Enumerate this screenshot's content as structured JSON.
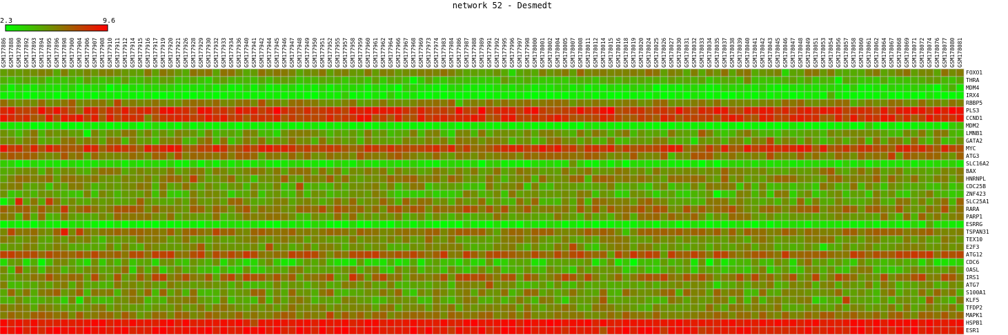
{
  "chart_data": {
    "type": "heatmap",
    "title": "network 52 - Desmedt",
    "color_scale": {
      "min": 2.3,
      "max": 9.6,
      "min_label": "2.3",
      "max_label": "9.6",
      "low_color": "#00ff00",
      "mid_color": "#808000",
      "high_color": "#ff0000",
      "grid_line_color": "#c0c0c0"
    },
    "columns": [
      "GSM177886",
      "GSM177888",
      "GSM177890",
      "GSM177892",
      "GSM177893",
      "GSM177894",
      "GSM177895",
      "GSM177896",
      "GSM177898",
      "GSM177900",
      "GSM177904",
      "GSM177906",
      "GSM177907",
      "GSM177908",
      "GSM177910",
      "GSM177911",
      "GSM177912",
      "GSM177914",
      "GSM177915",
      "GSM177916",
      "GSM177917",
      "GSM177919",
      "GSM177920",
      "GSM177921",
      "GSM177926",
      "GSM177928",
      "GSM177929",
      "GSM177930",
      "GSM177932",
      "GSM177933",
      "GSM177934",
      "GSM177936",
      "GSM177940",
      "GSM177941",
      "GSM177942",
      "GSM177944",
      "GSM177945",
      "GSM177946",
      "GSM177947",
      "GSM177948",
      "GSM177949",
      "GSM177950",
      "GSM177951",
      "GSM177952",
      "GSM177955",
      "GSM177957",
      "GSM177958",
      "GSM177959",
      "GSM177960",
      "GSM177961",
      "GSM177962",
      "GSM177964",
      "GSM177966",
      "GSM177967",
      "GSM177968",
      "GSM177969",
      "GSM177973",
      "GSM177974",
      "GSM177983",
      "GSM177984",
      "GSM177986",
      "GSM177987",
      "GSM177988",
      "GSM177989",
      "GSM177991",
      "GSM177992",
      "GSM177995",
      "GSM177996",
      "GSM177997",
      "GSM177998",
      "GSM178000",
      "GSM178001",
      "GSM178002",
      "GSM178004",
      "GSM178005",
      "GSM178007",
      "GSM178008",
      "GSM178011",
      "GSM178012",
      "GSM178014",
      "GSM178015",
      "GSM178016",
      "GSM178018",
      "GSM178019",
      "GSM178020",
      "GSM178024",
      "GSM178025",
      "GSM178026",
      "GSM178027",
      "GSM178030",
      "GSM178031",
      "GSM178032",
      "GSM178033",
      "GSM178034",
      "GSM178035",
      "GSM178037",
      "GSM178038",
      "GSM178039",
      "GSM178040",
      "GSM178041",
      "GSM178042",
      "GSM178043",
      "GSM178045",
      "GSM178046",
      "GSM178047",
      "GSM178048",
      "GSM178049",
      "GSM178051",
      "GSM178053",
      "GSM178054",
      "GSM178056",
      "GSM178057",
      "GSM178058",
      "GSM178060",
      "GSM178061",
      "GSM178062",
      "GSM178064",
      "GSM178067",
      "GSM178068",
      "GSM178069",
      "GSM178071",
      "GSM178072",
      "GSM178074",
      "GSM178076",
      "GSM178077",
      "GSM178080",
      "GSM178081"
    ],
    "rows": [
      {
        "name": "FOXO1",
        "level": 0.45,
        "spread": 0.12,
        "seed": 3
      },
      {
        "name": "THRA",
        "level": 0.3,
        "spread": 0.1,
        "seed": 7
      },
      {
        "name": "MDM4",
        "level": 0.12,
        "spread": 0.08,
        "seed": 11
      },
      {
        "name": "IRX4",
        "level": 0.05,
        "spread": 0.05,
        "seed": 13
      },
      {
        "name": "RBBP5",
        "level": 0.5,
        "spread": 0.1,
        "seed": 17
      },
      {
        "name": "PLS3",
        "level": 0.82,
        "spread": 0.14,
        "seed": 19
      },
      {
        "name": "CCND1",
        "level": 0.78,
        "spread": 0.16,
        "seed": 23
      },
      {
        "name": "MDM2",
        "level": 0.05,
        "spread": 0.05,
        "seed": 29
      },
      {
        "name": "LMNB1",
        "level": 0.4,
        "spread": 0.15,
        "seed": 31
      },
      {
        "name": "GATA2",
        "level": 0.42,
        "spread": 0.18,
        "seed": 37
      },
      {
        "name": "MYC",
        "level": 0.75,
        "spread": 0.18,
        "seed": 41
      },
      {
        "name": "ATG3",
        "level": 0.55,
        "spread": 0.12,
        "seed": 43
      },
      {
        "name": "SLC16A2",
        "level": 0.12,
        "spread": 0.08,
        "seed": 47
      },
      {
        "name": "BAX",
        "level": 0.45,
        "spread": 0.12,
        "seed": 53
      },
      {
        "name": "HNRNPL",
        "level": 0.5,
        "spread": 0.14,
        "seed": 59
      },
      {
        "name": "CDC25B",
        "level": 0.38,
        "spread": 0.18,
        "seed": 61
      },
      {
        "name": "ZNF423",
        "level": 0.35,
        "spread": 0.18,
        "seed": 67
      },
      {
        "name": "SLC25A1",
        "level": 0.45,
        "spread": 0.18,
        "seed": 71
      },
      {
        "name": "RARA",
        "level": 0.55,
        "spread": 0.15,
        "seed": 73
      },
      {
        "name": "PARP1",
        "level": 0.45,
        "spread": 0.18,
        "seed": 79
      },
      {
        "name": "ESRRG",
        "level": 0.08,
        "spread": 0.08,
        "seed": 83
      },
      {
        "name": "TSPAN31",
        "level": 0.55,
        "spread": 0.1,
        "seed": 89
      },
      {
        "name": "TEX10",
        "level": 0.45,
        "spread": 0.12,
        "seed": 97
      },
      {
        "name": "E2F3",
        "level": 0.42,
        "spread": 0.12,
        "seed": 101
      },
      {
        "name": "ATG12",
        "level": 0.65,
        "spread": 0.14,
        "seed": 103
      },
      {
        "name": "CDC6",
        "level": 0.28,
        "spread": 0.2,
        "seed": 107
      },
      {
        "name": "OASL",
        "level": 0.35,
        "spread": 0.18,
        "seed": 109
      },
      {
        "name": "IRS1",
        "level": 0.55,
        "spread": 0.2,
        "seed": 113
      },
      {
        "name": "ATG7",
        "level": 0.4,
        "spread": 0.14,
        "seed": 127
      },
      {
        "name": "S100A1",
        "level": 0.45,
        "spread": 0.18,
        "seed": 131
      },
      {
        "name": "KLF5",
        "level": 0.4,
        "spread": 0.16,
        "seed": 137
      },
      {
        "name": "TFDP2",
        "level": 0.45,
        "spread": 0.12,
        "seed": 139
      },
      {
        "name": "MAPK1",
        "level": 0.55,
        "spread": 0.1,
        "seed": 149
      },
      {
        "name": "HSPB1",
        "level": 0.92,
        "spread": 0.06,
        "seed": 151
      },
      {
        "name": "ESR1",
        "level": 0.92,
        "spread": 0.1,
        "seed": 157
      }
    ]
  }
}
